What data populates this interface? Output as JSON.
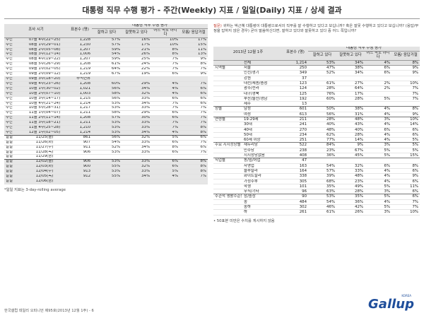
{
  "title": "대통령 직무 수행 평가 - 주간(Weekly) 지표 / 일일(Daily) 지표 / 상세 결과",
  "left": {
    "headers": {
      "period": "조사 시기",
      "sample": "표본수 (명)",
      "group": "대통령 직무 수행 평가",
      "good": "잘하고 있다",
      "bad": "잘못하고 있다",
      "neither": "어느 쪽도 아니다",
      "dk": "모름/ 응답거절"
    },
    "rows": [
      [
        "주간",
        "07월 4주(22~25)",
        "1,228",
        "57%",
        "16%",
        "10%",
        "17%"
      ],
      [
        "주간",
        "08월 1주(29~01)",
        "1,230",
        "57%",
        "17%",
        "10%",
        "15%"
      ],
      [
        "주간",
        "08월 2주(05~08)",
        "1,207",
        "59%",
        "21%",
        "8%",
        "11%"
      ],
      [
        "주간",
        "08월 3주(12~14)",
        "1,006",
        "54%",
        "26%",
        "8%",
        "13%"
      ],
      [
        "주간",
        "08월 4주(19~22)",
        "1,207",
        "59%",
        "25%",
        "7%",
        "9%"
      ],
      [
        "주간",
        "08월 5주(26~29)",
        "1,208",
        "61%",
        "24%",
        "7%",
        "8%"
      ],
      [
        "주간",
        "09월 1주(02~05)",
        "1,219",
        "64%",
        "22%",
        "7%",
        "7%"
      ],
      [
        "주간",
        "09월 2주(09~12)",
        "1,219",
        "67%",
        "19%",
        "6%",
        "9%"
      ],
      [
        "주간",
        "09월 3주(18~20)",
        "추석연휴",
        "",
        "",
        "",
        ""
      ],
      [
        "주간",
        "09월 4주(23~26)",
        "1,208",
        "60%",
        "29%",
        "4%",
        "7%"
      ],
      [
        "주간",
        "10월 1주(30~02)",
        "1,021",
        "56%",
        "34%",
        "4%",
        "6%"
      ],
      [
        "주간",
        "10월 2주(07~10)",
        "1,003",
        "58%",
        "32%",
        "4%",
        "6%"
      ],
      [
        "주간",
        "10월 3주(14~17)",
        "1,215",
        "56%",
        "33%",
        "6%",
        "6%"
      ],
      [
        "주간",
        "10월 4주(21~24)",
        "1,214",
        "53%",
        "34%",
        "7%",
        "6%"
      ],
      [
        "주간",
        "10월 5주(28~31)",
        "1,217",
        "53%",
        "33%",
        "7%",
        "7%"
      ],
      [
        "주간",
        "11월 1주(04~07)",
        "1,211",
        "58%",
        "29%",
        "6%",
        "7%"
      ],
      [
        "주간",
        "11월 2주(11~14)",
        "1,208",
        "57%",
        "30%",
        "6%",
        "7%"
      ],
      [
        "주간",
        "11월 3주(18~21)",
        "1,211",
        "53%",
        "33%",
        "7%",
        "7%"
      ],
      [
        "주간",
        "11월 4주(25~28)",
        "1,210",
        "53%",
        "33%",
        "7%",
        "8%"
      ],
      [
        "주간",
        "12월 1주(02~05)",
        "1,214",
        "53%",
        "34%",
        "4%",
        "8%"
      ],
      [
        "일일",
        "11/25(월)",
        "861",
        "56%",
        "32%",
        "5%",
        "6%"
      ],
      [
        "일일",
        "11/26(화)",
        "907",
        "54%",
        "33%",
        "6%",
        "7%"
      ],
      [
        "일일",
        "11/27(수)",
        "911",
        "52%",
        "34%",
        "8%",
        "6%"
      ],
      [
        "일일",
        "11/28(목)",
        "906",
        "53%",
        "33%",
        "6%",
        "7%"
      ],
      [
        "일일",
        "11/29(금)",
        "",
        "",
        "",
        "",
        ""
      ],
      [
        "일일",
        "12/02(월)",
        "906",
        "53%",
        "33%",
        "6%",
        "8%"
      ],
      [
        "일일",
        "12/03(화)",
        "900",
        "55%",
        "32%",
        "6%",
        "8%"
      ],
      [
        "일일",
        "12/04(수)",
        "913",
        "53%",
        "33%",
        "5%",
        "8%"
      ],
      [
        "일일",
        "12/05(목)",
        "912",
        "55%",
        "34%",
        "4%",
        "7%"
      ],
      [
        "일일",
        "12/06(금)",
        "",
        "",
        "",
        "",
        ""
      ]
    ],
    "note": "*일일 지표는 3-day-rolling average"
  },
  "right": {
    "question_label": "질문)",
    "question": "귀하는 박근혜 대통령이 대통령으로서의 직무를 잘 수행하고 있다고 보십니까? 혹은 잘못 수행하고 있다고 보십니까? (응답/부정을 답하지 않은 경우) 굳이 말씀하신다면, 잘하고 있다와 잘못하고 있다 중 어느 쪽입니까?",
    "headers": {
      "period": "2013년 12월 1주",
      "sample": "표본수 (명)",
      "group": "대통령 직무 수행 평가",
      "good": "잘하고 있다",
      "bad": "잘못하고 있다",
      "neither": "어느 쪽도 아니다",
      "dk": "모름/ 응답거절"
    },
    "rows": [
      [
        "",
        "전체",
        "1,214",
        "53%",
        "34%",
        "4%",
        "8%"
      ],
      [
        "지역별",
        "서울",
        "250",
        "47%",
        "38%",
        "6%",
        "9%"
      ],
      [
        "",
        "인천/경기",
        "349",
        "52%",
        "34%",
        "6%",
        "9%"
      ],
      [
        "",
        "강원",
        "37",
        "",
        "",
        "",
        ""
      ],
      [
        "",
        "대전/세종/충청",
        "123",
        "61%",
        "27%",
        "2%",
        "10%"
      ],
      [
        "",
        "광주/전라",
        "124",
        "28%",
        "64%",
        "2%",
        "7%"
      ],
      [
        "",
        "대구/경북",
        "125",
        "76%",
        "17%",
        "",
        "7%"
      ],
      [
        "",
        "부산/울산/경남",
        "192",
        "60%",
        "28%",
        "5%",
        "7%"
      ],
      [
        "",
        "제주",
        "13",
        "",
        "",
        "",
        ""
      ],
      [
        "성별",
        "남성",
        "601",
        "50%",
        "38%",
        "4%",
        "8%"
      ],
      [
        "",
        "여성",
        "613",
        "56%",
        "31%",
        "4%",
        "9%"
      ],
      [
        "연령별",
        "19-29세",
        "211",
        "28%",
        "48%",
        "3%",
        "10%"
      ],
      [
        "",
        "30대",
        "241",
        "40%",
        "43%",
        "4%",
        "14%"
      ],
      [
        "",
        "40대",
        "270",
        "48%",
        "40%",
        "6%",
        "6%"
      ],
      [
        "",
        "50대",
        "234",
        "62%",
        "28%",
        "4%",
        "6%"
      ],
      [
        "",
        "60세 이상",
        "251",
        "77%",
        "14%",
        "4%",
        "5%"
      ],
      [
        "주요 지지정당별",
        "새누리당",
        "522",
        "84%",
        "9%",
        "3%",
        "5%"
      ],
      [
        "",
        "민주당",
        "238",
        "23%",
        "67%",
        "5%",
        "5%"
      ],
      [
        "",
        "지지정당없음",
        "408",
        "36%",
        "45%",
        "5%",
        "15%"
      ],
      [
        "직업별",
        "농/임/어업",
        "47",
        "",
        "",
        "",
        ""
      ],
      [
        "",
        "자영업",
        "163",
        "54%",
        "32%",
        "6%",
        "8%"
      ],
      [
        "",
        "블루칼라",
        "164",
        "57%",
        "33%",
        "4%",
        "6%"
      ],
      [
        "",
        "화이트칼라",
        "338",
        "39%",
        "48%",
        "4%",
        "9%"
      ],
      [
        "",
        "가정주부",
        "305",
        "68%",
        "23%",
        "4%",
        "6%"
      ],
      [
        "",
        "학생",
        "101",
        "35%",
        "49%",
        "5%",
        "11%"
      ],
      [
        "",
        "무직/기타",
        "96",
        "63%",
        "28%",
        "3%",
        "6%"
      ],
      [
        "주관적 생활수준별",
        "상/중상",
        "90",
        "53%",
        "35%",
        "5%",
        "6%"
      ],
      [
        "",
        "중",
        "484",
        "54%",
        "36%",
        "4%",
        "7%"
      ],
      [
        "",
        "중하",
        "302",
        "46%",
        "42%",
        "5%",
        "7%"
      ],
      [
        "",
        "하",
        "261",
        "61%",
        "26%",
        "3%",
        "10%"
      ]
    ],
    "note": "• 50표본 미만은 수치를 게시하지 않음"
  },
  "footer": "한국갤럽 데일리 오피니언 제95호(2013년 12월 1주) - 6",
  "logo": "Gallup",
  "logo_sub": "KOREA"
}
